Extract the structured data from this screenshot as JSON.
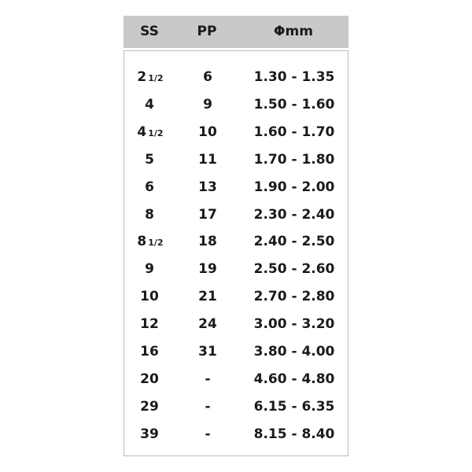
{
  "headers": {
    "ss": "SS",
    "pp": "PP",
    "mm": "Φmm"
  },
  "rows": [
    {
      "ss": "2",
      "ss_frac": "1/2",
      "pp": "6",
      "mm": "1.30 - 1.35"
    },
    {
      "ss": "4",
      "ss_frac": "",
      "pp": "9",
      "mm": "1.50 - 1.60"
    },
    {
      "ss": "4",
      "ss_frac": "1/2",
      "pp": "10",
      "mm": "1.60 - 1.70"
    },
    {
      "ss": "5",
      "ss_frac": "",
      "pp": "11",
      "mm": "1.70 - 1.80"
    },
    {
      "ss": "6",
      "ss_frac": "",
      "pp": "13",
      "mm": "1.90 - 2.00"
    },
    {
      "ss": "8",
      "ss_frac": "",
      "pp": "17",
      "mm": "2.30 - 2.40"
    },
    {
      "ss": "8",
      "ss_frac": "1/2",
      "pp": "18",
      "mm": "2.40 - 2.50"
    },
    {
      "ss": "9",
      "ss_frac": "",
      "pp": "19",
      "mm": "2.50 - 2.60"
    },
    {
      "ss": "10",
      "ss_frac": "",
      "pp": "21",
      "mm": "2.70 - 2.80"
    },
    {
      "ss": "12",
      "ss_frac": "",
      "pp": "24",
      "mm": "3.00 - 3.20"
    },
    {
      "ss": "16",
      "ss_frac": "",
      "pp": "31",
      "mm": "3.80 - 4.00"
    },
    {
      "ss": "20",
      "ss_frac": "",
      "pp": "-",
      "mm": "4.60 - 4.80"
    },
    {
      "ss": "29",
      "ss_frac": "",
      "pp": "-",
      "mm": "6.15 - 6.35"
    },
    {
      "ss": "39",
      "ss_frac": "",
      "pp": "-",
      "mm": "8.15 - 8.40"
    }
  ],
  "colors": {
    "header_bg": "#c9c9c9",
    "border": "#bdbdbd",
    "text": "#1a1a1a"
  }
}
